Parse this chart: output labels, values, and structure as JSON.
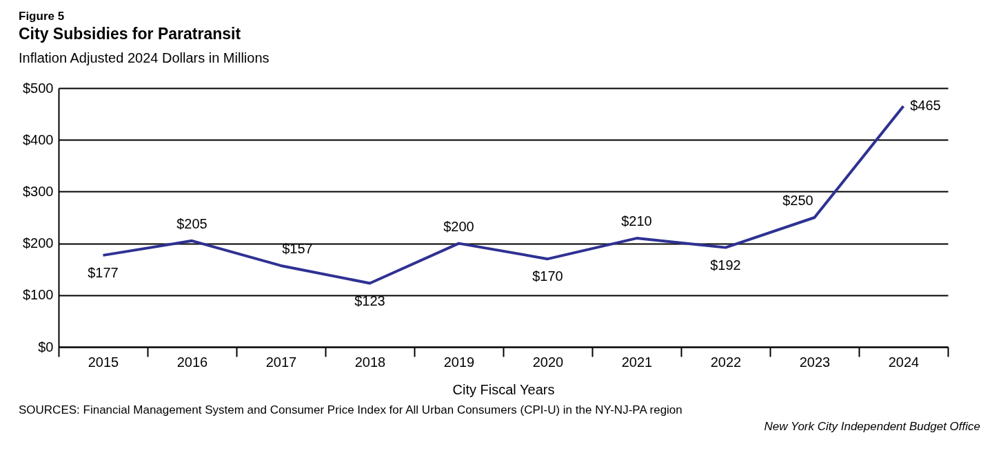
{
  "chart_data": {
    "type": "line",
    "title": "City Subsidies for Paratransit",
    "subtitle": "Inflation Adjusted 2024 Dollars in Millions",
    "xlabel": "City Fiscal Years",
    "annotations": [
      "Figure 5",
      "SOURCES: Financial Management System and Consumer Price Index for All Urban Consumers (CPI-U) in the NY-NJ-PA region",
      "New York City Independent Budget Office"
    ],
    "categories": [
      "2015",
      "2016",
      "2017",
      "2018",
      "2019",
      "2020",
      "2021",
      "2022",
      "2023",
      "2024"
    ],
    "series": [
      {
        "color": "#2e3192",
        "values": [
          177,
          205,
          157,
          123,
          200,
          170,
          210,
          192,
          250,
          465
        ],
        "value_labels": [
          "$177",
          "$205",
          "$157",
          "$123",
          "$200",
          "$170",
          "$210",
          "$192",
          "$250",
          "$465"
        ]
      }
    ],
    "ylim": [
      0,
      500
    ],
    "yticks": [
      {
        "value": 0,
        "label": "$0"
      },
      {
        "value": 100,
        "label": "$100"
      },
      {
        "value": 200,
        "label": "$200"
      },
      {
        "value": 300,
        "label": "$300"
      },
      {
        "value": 400,
        "label": "$400"
      },
      {
        "value": 500,
        "label": "$500"
      }
    ],
    "grid": "y",
    "legend": false,
    "marker": "none",
    "line_style": "solid"
  }
}
